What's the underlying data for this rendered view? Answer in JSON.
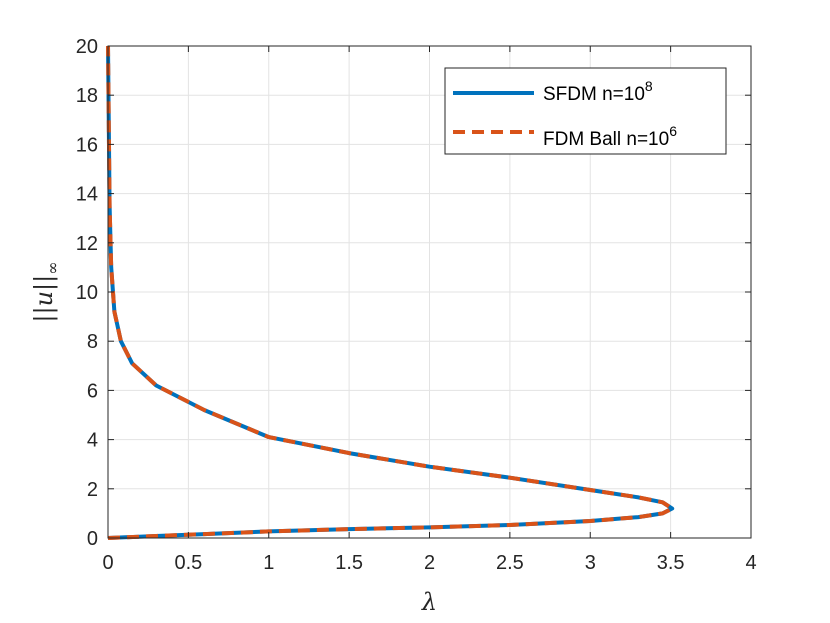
{
  "chart_data": {
    "type": "line",
    "title": "",
    "xlabel": "λ",
    "ylabel_parts": {
      "inner": "u",
      "sub": "∞"
    },
    "xlim": [
      0,
      4
    ],
    "ylim": [
      0,
      20
    ],
    "xticks": [
      0,
      0.5,
      1,
      1.5,
      2,
      2.5,
      3,
      3.5,
      4
    ],
    "xtick_labels": [
      "0",
      "0.5",
      "1",
      "1.5",
      "2",
      "2.5",
      "3",
      "3.5",
      "4"
    ],
    "yticks": [
      0,
      2,
      4,
      6,
      8,
      10,
      12,
      14,
      16,
      18,
      20
    ],
    "ytick_labels": [
      "0",
      "2",
      "4",
      "6",
      "8",
      "10",
      "12",
      "14",
      "16",
      "18",
      "20"
    ],
    "grid": true,
    "legend_position": "top-right",
    "series": [
      {
        "name_base": "SFDM n=10",
        "name_exp": "8",
        "style": "solid",
        "color": "#0072BD",
        "x": [
          0,
          0.3,
          0.6,
          1.0,
          1.5,
          2.0,
          2.5,
          3.0,
          3.3,
          3.45,
          3.51,
          3.45,
          3.3,
          3.0,
          2.5,
          2.0,
          1.5,
          1.0,
          0.6,
          0.3,
          0.15,
          0.08,
          0.04,
          0.02,
          0.01,
          0
        ],
        "y": [
          0,
          0.08,
          0.16,
          0.27,
          0.36,
          0.43,
          0.53,
          0.69,
          0.85,
          1.0,
          1.2,
          1.45,
          1.65,
          1.95,
          2.45,
          2.9,
          3.45,
          4.1,
          5.2,
          6.2,
          7.1,
          8.0,
          9.2,
          11.0,
          13.5,
          20
        ]
      },
      {
        "name_base": "FDM Ball n=10",
        "name_exp": "6",
        "style": "dashed",
        "color": "#D95319",
        "x": [
          0,
          0.3,
          0.6,
          1.0,
          1.5,
          2.0,
          2.5,
          3.0,
          3.3,
          3.45,
          3.51,
          3.45,
          3.3,
          3.0,
          2.5,
          2.0,
          1.5,
          1.0,
          0.6,
          0.3,
          0.15,
          0.08,
          0.04,
          0.02,
          0.01,
          0
        ],
        "y": [
          0,
          0.08,
          0.16,
          0.27,
          0.36,
          0.43,
          0.53,
          0.69,
          0.85,
          1.0,
          1.2,
          1.45,
          1.65,
          1.95,
          2.45,
          2.9,
          3.45,
          4.1,
          5.2,
          6.2,
          7.1,
          8.0,
          9.2,
          11.0,
          13.5,
          20
        ]
      }
    ]
  }
}
